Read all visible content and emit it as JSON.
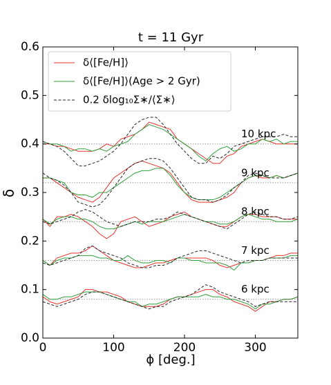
{
  "chart_data": {
    "type": "line",
    "title": "t = 11 Gyr",
    "xlabel": "ϕ [deg.]",
    "ylabel": "δ",
    "xlim": [
      0,
      360
    ],
    "ylim": [
      0,
      0.6
    ],
    "xticks": [
      0,
      100,
      200,
      300
    ],
    "yticks": [
      {
        "value": 0,
        "label": "0.0"
      },
      0.1,
      0.2,
      0.3,
      0.4,
      0.5,
      0.6
    ],
    "legend": "upper left",
    "reference_color": "#999999",
    "x": [
      0,
      10,
      20,
      30,
      40,
      50,
      60,
      70,
      80,
      90,
      100,
      110,
      120,
      130,
      140,
      150,
      160,
      170,
      180,
      190,
      200,
      210,
      220,
      230,
      240,
      250,
      260,
      270,
      280,
      290,
      300,
      310,
      320,
      330,
      340,
      350,
      360
    ],
    "groups": [
      {
        "label": "10 kpc",
        "reference": 0.4
      },
      {
        "label": "9 kpc",
        "reference": 0.32
      },
      {
        "label": "8 kpc",
        "reference": 0.24
      },
      {
        "label": "7 kpc",
        "reference": 0.16
      },
      {
        "label": "6 kpc",
        "reference": 0.08
      }
    ],
    "series": [
      {
        "name": "δ⟨[Fe/H]⟩",
        "color": "#e8302a",
        "dashed": false,
        "values": [
          [
            0.4,
            0.4,
            0.395,
            0.395,
            0.39,
            0.385,
            0.385,
            0.385,
            0.39,
            0.4,
            0.395,
            0.41,
            0.415,
            0.42,
            0.43,
            0.445,
            0.44,
            0.435,
            0.43,
            0.41,
            0.4,
            0.39,
            0.38,
            0.37,
            0.36,
            0.36,
            0.375,
            0.38,
            0.395,
            0.4,
            0.405,
            0.41,
            0.405,
            0.4,
            0.4,
            0.4,
            0.4
          ],
          [
            0.33,
            0.33,
            0.32,
            0.31,
            0.3,
            0.29,
            0.285,
            0.28,
            0.29,
            0.31,
            0.33,
            0.34,
            0.35,
            0.36,
            0.365,
            0.36,
            0.355,
            0.35,
            0.34,
            0.32,
            0.3,
            0.285,
            0.28,
            0.28,
            0.28,
            0.285,
            0.29,
            0.3,
            0.32,
            0.33,
            0.335,
            0.33,
            0.33,
            0.335,
            0.33,
            0.335,
            0.34
          ],
          [
            0.245,
            0.23,
            0.25,
            0.25,
            0.255,
            0.25,
            0.24,
            0.23,
            0.215,
            0.205,
            0.215,
            0.24,
            0.245,
            0.25,
            0.24,
            0.23,
            0.235,
            0.24,
            0.25,
            0.255,
            0.26,
            0.25,
            0.245,
            0.24,
            0.235,
            0.23,
            0.23,
            0.24,
            0.25,
            0.255,
            0.255,
            0.25,
            0.25,
            0.25,
            0.245,
            0.245,
            0.245
          ],
          [
            0.16,
            0.15,
            0.165,
            0.17,
            0.175,
            0.175,
            0.18,
            0.19,
            0.18,
            0.17,
            0.16,
            0.155,
            0.15,
            0.145,
            0.145,
            0.15,
            0.155,
            0.155,
            0.16,
            0.165,
            0.165,
            0.165,
            0.165,
            0.165,
            0.16,
            0.15,
            0.145,
            0.15,
            0.155,
            0.155,
            0.16,
            0.16,
            0.165,
            0.17,
            0.17,
            0.175,
            0.175
          ],
          [
            0.085,
            0.075,
            0.07,
            0.075,
            0.08,
            0.085,
            0.1,
            0.1,
            0.095,
            0.095,
            0.09,
            0.085,
            0.075,
            0.07,
            0.065,
            0.065,
            0.065,
            0.07,
            0.08,
            0.085,
            0.085,
            0.09,
            0.095,
            0.1,
            0.1,
            0.09,
            0.085,
            0.075,
            0.07,
            0.065,
            0.055,
            0.065,
            0.075,
            0.075,
            0.08,
            0.08,
            0.085
          ]
        ]
      },
      {
        "name": "δ⟨[Fe/H]⟩(Age > 2 Gyr)",
        "color": "#2e9e3a",
        "dashed": false,
        "values": [
          [
            0.405,
            0.4,
            0.4,
            0.395,
            0.385,
            0.39,
            0.39,
            0.385,
            0.39,
            0.385,
            0.395,
            0.4,
            0.405,
            0.42,
            0.43,
            0.44,
            0.435,
            0.43,
            0.42,
            0.41,
            0.4,
            0.39,
            0.375,
            0.365,
            0.38,
            0.39,
            0.395,
            0.385,
            0.39,
            0.4,
            0.4,
            0.41,
            0.405,
            0.41,
            0.4,
            0.405,
            0.405
          ],
          [
            0.33,
            0.33,
            0.325,
            0.32,
            0.3,
            0.295,
            0.295,
            0.29,
            0.3,
            0.3,
            0.31,
            0.32,
            0.33,
            0.34,
            0.345,
            0.345,
            0.35,
            0.35,
            0.335,
            0.315,
            0.3,
            0.29,
            0.285,
            0.285,
            0.285,
            0.29,
            0.3,
            0.31,
            0.32,
            0.33,
            0.335,
            0.335,
            0.33,
            0.335,
            0.33,
            0.335,
            0.34
          ],
          [
            0.245,
            0.235,
            0.245,
            0.25,
            0.25,
            0.245,
            0.245,
            0.24,
            0.23,
            0.225,
            0.225,
            0.23,
            0.235,
            0.24,
            0.235,
            0.24,
            0.24,
            0.24,
            0.245,
            0.25,
            0.255,
            0.25,
            0.245,
            0.24,
            0.24,
            0.235,
            0.235,
            0.24,
            0.25,
            0.255,
            0.25,
            0.245,
            0.245,
            0.24,
            0.24,
            0.24,
            0.245
          ],
          [
            0.16,
            0.15,
            0.16,
            0.165,
            0.165,
            0.17,
            0.17,
            0.17,
            0.165,
            0.165,
            0.16,
            0.16,
            0.17,
            0.16,
            0.155,
            0.155,
            0.16,
            0.16,
            0.155,
            0.165,
            0.165,
            0.16,
            0.16,
            0.155,
            0.155,
            0.155,
            0.15,
            0.14,
            0.155,
            0.155,
            0.16,
            0.16,
            0.165,
            0.165,
            0.165,
            0.17,
            0.17
          ],
          [
            0.09,
            0.08,
            0.08,
            0.085,
            0.085,
            0.09,
            0.095,
            0.095,
            0.095,
            0.09,
            0.085,
            0.08,
            0.075,
            0.075,
            0.065,
            0.07,
            0.07,
            0.075,
            0.08,
            0.085,
            0.085,
            0.085,
            0.085,
            0.09,
            0.085,
            0.085,
            0.08,
            0.08,
            0.075,
            0.07,
            0.06,
            0.07,
            0.07,
            0.075,
            0.08,
            0.08,
            0.085
          ]
        ]
      },
      {
        "name": "0.2 δlog₁₀Σ∗/⟨Σ∗⟩",
        "color": "#222222",
        "dashed": true,
        "values": [
          [
            0.405,
            0.4,
            0.395,
            0.385,
            0.37,
            0.355,
            0.355,
            0.36,
            0.365,
            0.375,
            0.385,
            0.4,
            0.42,
            0.44,
            0.45,
            0.455,
            0.455,
            0.44,
            0.42,
            0.4,
            0.385,
            0.37,
            0.36,
            0.36,
            0.375,
            0.37,
            0.38,
            0.395,
            0.4,
            0.405,
            0.41,
            0.415,
            0.415,
            0.415,
            0.42,
            0.415,
            0.415
          ],
          [
            0.34,
            0.33,
            0.325,
            0.315,
            0.3,
            0.28,
            0.275,
            0.27,
            0.275,
            0.29,
            0.31,
            0.33,
            0.35,
            0.36,
            0.365,
            0.37,
            0.37,
            0.365,
            0.35,
            0.33,
            0.31,
            0.29,
            0.285,
            0.285,
            0.28,
            0.285,
            0.295,
            0.31,
            0.32,
            0.335,
            0.34,
            0.335,
            0.33,
            0.33,
            0.33,
            0.335,
            0.34
          ],
          [
            0.24,
            0.235,
            0.24,
            0.245,
            0.25,
            0.26,
            0.265,
            0.26,
            0.25,
            0.24,
            0.235,
            0.23,
            0.235,
            0.24,
            0.24,
            0.24,
            0.245,
            0.245,
            0.25,
            0.26,
            0.255,
            0.25,
            0.245,
            0.24,
            0.235,
            0.23,
            0.225,
            0.235,
            0.245,
            0.255,
            0.26,
            0.255,
            0.25,
            0.25,
            0.245,
            0.245,
            0.25
          ],
          [
            0.155,
            0.15,
            0.155,
            0.16,
            0.165,
            0.17,
            0.185,
            0.19,
            0.18,
            0.175,
            0.17,
            0.165,
            0.155,
            0.15,
            0.145,
            0.145,
            0.15,
            0.15,
            0.155,
            0.165,
            0.17,
            0.175,
            0.18,
            0.18,
            0.175,
            0.17,
            0.165,
            0.16,
            0.155,
            0.16,
            0.16,
            0.16,
            0.165,
            0.165,
            0.165,
            0.165,
            0.165
          ],
          [
            0.075,
            0.07,
            0.065,
            0.07,
            0.075,
            0.08,
            0.09,
            0.095,
            0.095,
            0.09,
            0.085,
            0.08,
            0.075,
            0.07,
            0.065,
            0.06,
            0.065,
            0.065,
            0.075,
            0.08,
            0.085,
            0.09,
            0.1,
            0.11,
            0.105,
            0.095,
            0.09,
            0.085,
            0.08,
            0.075,
            0.065,
            0.07,
            0.075,
            0.075,
            0.075,
            0.075,
            0.075
          ]
        ]
      }
    ]
  }
}
